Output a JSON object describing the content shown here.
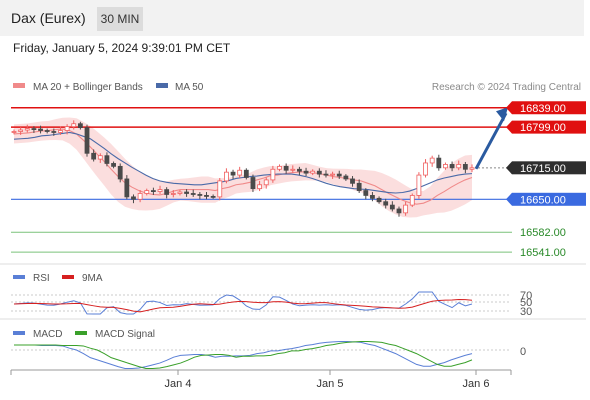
{
  "header": {
    "title": "Dax (Eurex)",
    "timeframe": "30 MIN",
    "timestamp": "Friday, January 5, 2024 9:39:01 PM CET"
  },
  "legend": {
    "ma20": "MA 20 + Bollinger Bands",
    "ma50": "MA 50",
    "credit": "Research © 2024 Trading Central"
  },
  "colors": {
    "up_candle": "#f06060",
    "down_candle": "#4a4a4a",
    "ma20": "#f08a8a",
    "ma50": "#4a6aa8",
    "band_fill": "#fbdada",
    "resistance": "#e01010",
    "support_blue": "#3a6ae0",
    "support_green": "#7ac27a",
    "pivot_label_bg": "#2e2e2e",
    "arrow": "#2a5aa0",
    "rsi": "#5a7fd6",
    "rsi_ma": "#d62020",
    "macd": "#5a7fd6",
    "macd_signal": "#3aa02a"
  },
  "levels": [
    {
      "value": "16839.00",
      "kind": "resistance"
    },
    {
      "value": "16799.00",
      "kind": "resistance"
    },
    {
      "value": "16715.00",
      "kind": "pivot"
    },
    {
      "value": "16650.00",
      "kind": "support_blue"
    },
    {
      "value": "16582.00",
      "kind": "support_green"
    },
    {
      "value": "16541.00",
      "kind": "support_green"
    }
  ],
  "rsi": {
    "label": "RSI",
    "ma_label": "9MA",
    "levels": [
      "70",
      "50",
      "30"
    ]
  },
  "macd": {
    "label": "MACD",
    "signal_label": "MACD Signal",
    "zero_label": "0"
  },
  "chart_data": {
    "type": "candlestick",
    "y_range": [
      16535,
      16855
    ],
    "x_ticks": [
      "Jan 4",
      "Jan 5",
      "Jan 6"
    ],
    "close_series": [
      16790,
      16793,
      16796,
      16795,
      16792,
      16790,
      16788,
      16792,
      16800,
      16806,
      16798,
      16745,
      16733,
      16740,
      16724,
      16718,
      16692,
      16655,
      16650,
      16662,
      16668,
      16666,
      16670,
      16660,
      16662,
      16665,
      16662,
      16660,
      16658,
      16656,
      16655,
      16688,
      16706,
      16700,
      16710,
      16695,
      16672,
      16680,
      16690,
      16712,
      16718,
      16710,
      16712,
      16708,
      16704,
      16708,
      16702,
      16700,
      16702,
      16698,
      16692,
      16683,
      16668,
      16658,
      16652,
      16645,
      16638,
      16630,
      16622,
      16638,
      16658,
      16700,
      16725,
      16735,
      16715,
      16722,
      16715,
      16722,
      16712,
      16715
    ],
    "ma20_series": [
      16785,
      16786,
      16787,
      16789,
      16791,
      16792,
      16794,
      16795,
      16792,
      16785,
      16772,
      16758,
      16743,
      16728,
      16712,
      16697,
      16684,
      16675,
      16668,
      16663,
      16660,
      16659,
      16662,
      16667,
      16670,
      16670,
      16670,
      16670,
      16670,
      16668,
      16672,
      16675,
      16680,
      16682,
      16685,
      16690,
      16694,
      16699,
      16700,
      16703,
      16705,
      16706,
      16707,
      16705,
      16703,
      16700,
      16697,
      16695,
      16693,
      16690,
      16688,
      16683,
      16678,
      16670,
      16662,
      16655,
      16648,
      16643,
      16640,
      16642,
      16648,
      16658,
      16666,
      16675,
      16683,
      16690,
      16695
    ],
    "ma50_series": [
      16774,
      16775,
      16776,
      16778,
      16781,
      16782,
      16784,
      16786,
      16788,
      16785,
      16780,
      16775,
      16765,
      16755,
      16744,
      16734,
      16725,
      16716,
      16708,
      16700,
      16693,
      16688,
      16685,
      16683,
      16682,
      16681,
      16680,
      16680,
      16682,
      16684,
      16686,
      16689,
      16693,
      16695,
      16697,
      16698,
      16700,
      16701,
      16702,
      16702,
      16702,
      16700,
      16697,
      16693,
      16688,
      16683,
      16679,
      16676,
      16674,
      16672,
      16671,
      16670,
      16668,
      16666,
      16664,
      16663,
      16664,
      16667,
      16672,
      16678,
      16684,
      16690,
      16694,
      16697,
      16700,
      16702,
      16703
    ]
  }
}
